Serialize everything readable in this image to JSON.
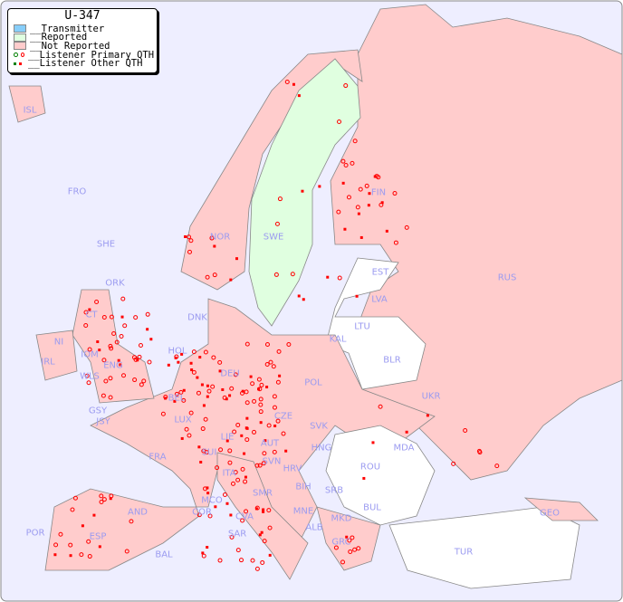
{
  "legend": {
    "title": "U-347",
    "items": [
      {
        "label": "__Transmitter",
        "color": "#87cefa"
      },
      {
        "label": "__Reported",
        "color": "#e0ffe0"
      },
      {
        "label": "__Not Reported",
        "color": "#ffcccc"
      },
      {
        "label": "__Listener Primary QTH",
        "colors": [
          "#008000",
          "#ff0000"
        ]
      },
      {
        "label": "__Listener Other QTH",
        "colors": [
          "#008000",
          "#ff0000"
        ]
      }
    ]
  },
  "colors": {
    "sea": "#eeeeff",
    "not_reported": "#ffcccc",
    "reported": "#e0ffe0",
    "no_data": "#ffffff",
    "listener": "#ff0000",
    "border": "#888888"
  },
  "countries": [
    "ISL",
    "FRO",
    "SHE",
    "ORK",
    "NOR",
    "SWE",
    "FIN",
    "RUS",
    "EST",
    "LVA",
    "LTU",
    "KAL",
    "BLR",
    "DNK",
    "HOL",
    "DEU",
    "POL",
    "UKR",
    "IRL",
    "NI",
    "CT",
    "IOM",
    "WLS",
    "ENG",
    "GSY",
    "JSY",
    "BEL",
    "LUX",
    "FRA",
    "SUI",
    "LIE",
    "AUT",
    "CZE",
    "SVK",
    "HNG",
    "MDA",
    "ROU",
    "SVN",
    "HRV",
    "BIH",
    "SRB",
    "BUL",
    "ITA",
    "MCO",
    "COR",
    "SAR",
    "SMR",
    "CVA",
    "MNE",
    "ALB",
    "MKD",
    "GRC",
    "TUR",
    "GEO",
    "AND",
    "POR",
    "ESP",
    "BAL"
  ]
}
